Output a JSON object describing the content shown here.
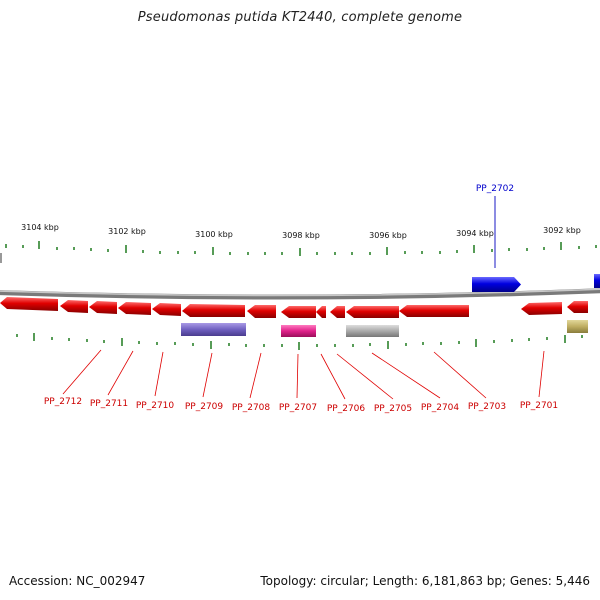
{
  "title": "Pseudomonas putida KT2440, complete genome",
  "footer": {
    "accession": "Accession: NC_002947",
    "summary": "Topology: circular; Length: 6,181,863 bp; Genes: 5,446"
  },
  "colors": {
    "reverse_gene": "#ee0000",
    "forward_gene": "#0000ee",
    "tick": "#1f7a1f",
    "backbone": "#888888",
    "feature_purple": "#7b68c8",
    "feature_magenta": "#e0208a",
    "feature_gray": "#b0b0b0",
    "feature_olive": "#c2b46a"
  },
  "scale_labels": [
    "3104 kbp",
    "3102 kbp",
    "3100 kbp",
    "3098 kbp",
    "3096 kbp",
    "3094 kbp",
    "3092 kbp"
  ],
  "genes": [
    {
      "id": "PP_2712",
      "strand": "reverse"
    },
    {
      "id": "PP_2711",
      "strand": "reverse"
    },
    {
      "id": "PP_2710",
      "strand": "reverse"
    },
    {
      "id": "PP_2709",
      "strand": "reverse"
    },
    {
      "id": "PP_2708",
      "strand": "reverse"
    },
    {
      "id": "PP_2707",
      "strand": "reverse"
    },
    {
      "id": "PP_2706",
      "strand": "reverse"
    },
    {
      "id": "PP_2705",
      "strand": "reverse"
    },
    {
      "id": "PP_2704",
      "strand": "reverse"
    },
    {
      "id": "PP_2703",
      "strand": "reverse"
    },
    {
      "id": "PP_2701",
      "strand": "reverse"
    },
    {
      "id": "PP_2702",
      "strand": "forward"
    }
  ]
}
